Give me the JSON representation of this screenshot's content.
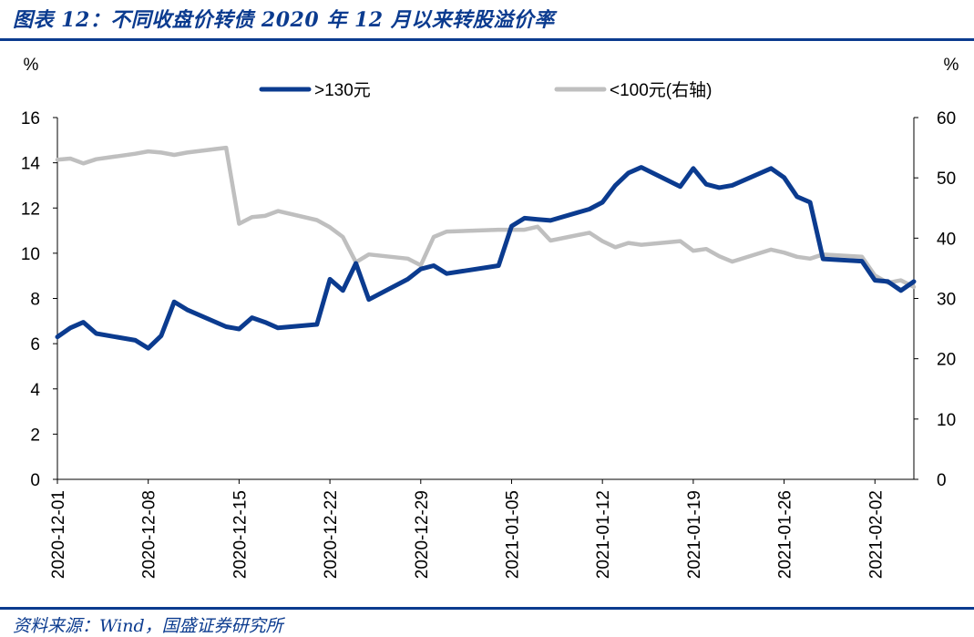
{
  "header": {
    "title": "图表 12：不同收盘价转债 2020 年 12 月以来转股溢价率"
  },
  "footer": {
    "source": "资料来源：Wind，国盛证券研究所"
  },
  "chart_data": {
    "type": "line",
    "y_left_unit": "%",
    "y_right_unit": "%",
    "y_left_lim": [
      0,
      16
    ],
    "y_left_ticks": [
      0,
      2,
      4,
      6,
      8,
      10,
      12,
      14,
      16
    ],
    "y_right_lim": [
      0,
      60
    ],
    "y_right_ticks": [
      0,
      10,
      20,
      30,
      40,
      50,
      60
    ],
    "x_ticks": [
      "2020-12-01",
      "2020-12-08",
      "2020-12-15",
      "2020-12-22",
      "2020-12-29",
      "2021-01-05",
      "2021-01-12",
      "2021-01-19",
      "2021-01-26",
      "2021-02-02"
    ],
    "legend_position": "top",
    "series": [
      {
        "name": ">130元",
        "axis": "left",
        "color": "#0b3b8f",
        "points": [
          [
            "2020-12-01",
            6.3
          ],
          [
            "2020-12-02",
            6.7
          ],
          [
            "2020-12-03",
            6.95
          ],
          [
            "2020-12-04",
            6.45
          ],
          [
            "2020-12-07",
            6.15
          ],
          [
            "2020-12-08",
            5.8
          ],
          [
            "2020-12-09",
            6.35
          ],
          [
            "2020-12-10",
            7.85
          ],
          [
            "2020-12-11",
            7.5
          ],
          [
            "2020-12-14",
            6.75
          ],
          [
            "2020-12-15",
            6.65
          ],
          [
            "2020-12-16",
            7.15
          ],
          [
            "2020-12-17",
            6.95
          ],
          [
            "2020-12-18",
            6.7
          ],
          [
            "2020-12-21",
            6.85
          ],
          [
            "2020-12-22",
            8.85
          ],
          [
            "2020-12-23",
            8.35
          ],
          [
            "2020-12-24",
            9.55
          ],
          [
            "2020-12-25",
            7.95
          ],
          [
            "2020-12-28",
            8.85
          ],
          [
            "2020-12-29",
            9.3
          ],
          [
            "2020-12-30",
            9.45
          ],
          [
            "2020-12-31",
            9.1
          ],
          [
            "2021-01-04",
            9.45
          ],
          [
            "2021-01-05",
            11.2
          ],
          [
            "2021-01-06",
            11.55
          ],
          [
            "2021-01-07",
            11.5
          ],
          [
            "2021-01-08",
            11.45
          ],
          [
            "2021-01-11",
            11.95
          ],
          [
            "2021-01-12",
            12.25
          ],
          [
            "2021-01-13",
            13.0
          ],
          [
            "2021-01-14",
            13.55
          ],
          [
            "2021-01-15",
            13.8
          ],
          [
            "2021-01-18",
            12.95
          ],
          [
            "2021-01-19",
            13.75
          ],
          [
            "2021-01-20",
            13.05
          ],
          [
            "2021-01-21",
            12.9
          ],
          [
            "2021-01-22",
            13.0
          ],
          [
            "2021-01-25",
            13.75
          ],
          [
            "2021-01-26",
            13.35
          ],
          [
            "2021-01-27",
            12.5
          ],
          [
            "2021-01-28",
            12.25
          ],
          [
            "2021-01-29",
            9.75
          ],
          [
            "2021-02-01",
            9.65
          ],
          [
            "2021-02-02",
            8.8
          ],
          [
            "2021-02-03",
            8.75
          ],
          [
            "2021-02-04",
            8.35
          ],
          [
            "2021-02-05",
            8.75
          ]
        ]
      },
      {
        "name": "<100元(右轴)",
        "axis": "right",
        "color": "#bfbfbf",
        "points": [
          [
            "2020-12-01",
            53.0
          ],
          [
            "2020-12-02",
            53.2
          ],
          [
            "2020-12-03",
            52.4
          ],
          [
            "2020-12-04",
            53.1
          ],
          [
            "2020-12-07",
            54.0
          ],
          [
            "2020-12-08",
            54.4
          ],
          [
            "2020-12-09",
            54.2
          ],
          [
            "2020-12-10",
            53.8
          ],
          [
            "2020-12-11",
            54.2
          ],
          [
            "2020-12-14",
            55.0
          ],
          [
            "2020-12-15",
            42.4
          ],
          [
            "2020-12-16",
            43.5
          ],
          [
            "2020-12-17",
            43.7
          ],
          [
            "2020-12-18",
            44.5
          ],
          [
            "2020-12-21",
            43.0
          ],
          [
            "2020-12-22",
            41.8
          ],
          [
            "2020-12-23",
            40.2
          ],
          [
            "2020-12-24",
            36.0
          ],
          [
            "2020-12-25",
            37.3
          ],
          [
            "2020-12-28",
            36.6
          ],
          [
            "2020-12-29",
            35.5
          ],
          [
            "2020-12-30",
            40.2
          ],
          [
            "2020-12-31",
            41.1
          ],
          [
            "2021-01-04",
            41.4
          ],
          [
            "2021-01-05",
            41.4
          ],
          [
            "2021-01-06",
            41.4
          ],
          [
            "2021-01-07",
            41.9
          ],
          [
            "2021-01-08",
            39.6
          ],
          [
            "2021-01-11",
            40.9
          ],
          [
            "2021-01-12",
            39.5
          ],
          [
            "2021-01-13",
            38.5
          ],
          [
            "2021-01-14",
            39.2
          ],
          [
            "2021-01-15",
            38.9
          ],
          [
            "2021-01-18",
            39.5
          ],
          [
            "2021-01-19",
            37.9
          ],
          [
            "2021-01-20",
            38.2
          ],
          [
            "2021-01-21",
            37.0
          ],
          [
            "2021-01-22",
            36.1
          ],
          [
            "2021-01-25",
            38.1
          ],
          [
            "2021-01-26",
            37.6
          ],
          [
            "2021-01-27",
            36.9
          ],
          [
            "2021-01-28",
            36.6
          ],
          [
            "2021-01-29",
            37.3
          ],
          [
            "2021-02-01",
            36.9
          ],
          [
            "2021-02-02",
            33.8
          ],
          [
            "2021-02-03",
            32.6
          ],
          [
            "2021-02-04",
            33.0
          ],
          [
            "2021-02-05",
            31.9
          ]
        ]
      }
    ]
  }
}
